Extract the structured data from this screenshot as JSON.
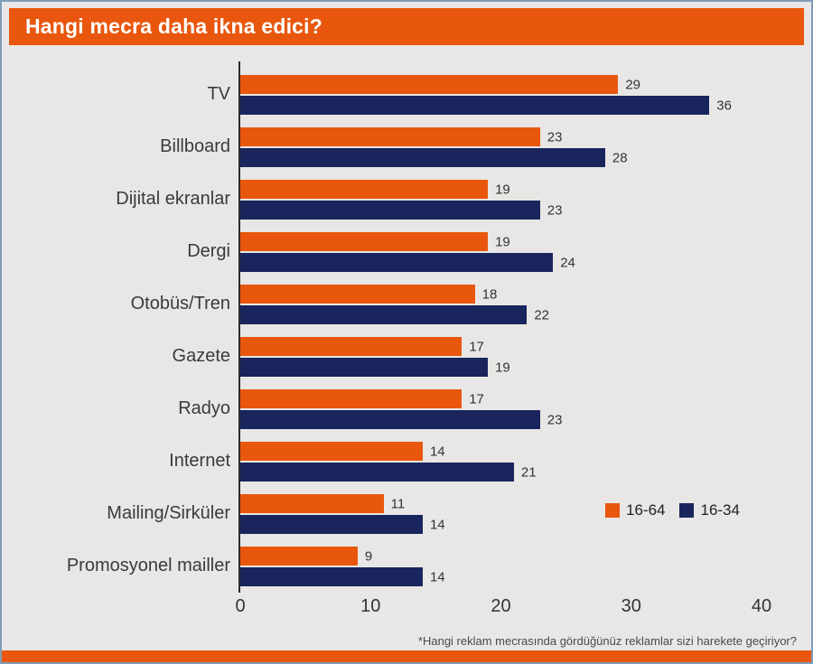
{
  "header": {
    "title": "Hangi mecra daha ikna edici?"
  },
  "footnote": "*Hangi reklam mecrasında gördüğünüz reklamlar sizi harekete geçiriyor?",
  "colors": {
    "accent_orange": "#E8570D",
    "navy": "#19255C",
    "background": "#E8E7E5",
    "axis": "#2A2A2A"
  },
  "chart_data": {
    "type": "bar",
    "orientation": "horizontal",
    "title": "Hangi mecra daha ikna edici?",
    "categories": [
      "TV",
      "Billboard",
      "Dijital ekranlar",
      "Dergi",
      "Otobüs/Tren",
      "Gazete",
      "Radyo",
      "Internet",
      "Mailing/Sirküler",
      "Promosyonel mailler"
    ],
    "series": [
      {
        "name": "16-64",
        "color": "#E8570D",
        "values": [
          29,
          23,
          19,
          19,
          18,
          17,
          17,
          14,
          11,
          9
        ]
      },
      {
        "name": "16-34",
        "color": "#19255C",
        "values": [
          36,
          28,
          23,
          24,
          22,
          19,
          23,
          21,
          14,
          14
        ]
      }
    ],
    "xlim": [
      0,
      40
    ],
    "xticks": [
      0,
      10,
      20,
      30,
      40
    ],
    "grid": false,
    "legend_position": "right-lower",
    "value_labels": true
  }
}
